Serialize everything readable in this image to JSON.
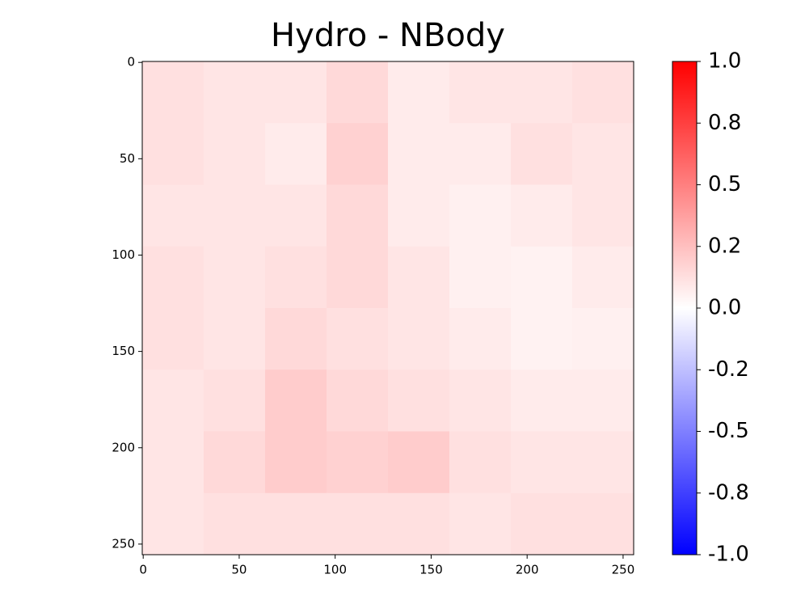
{
  "chart_data": {
    "type": "heatmap",
    "title": "Hydro - NBody",
    "values": [
      [
        0.12,
        0.1,
        0.1,
        0.15,
        0.08,
        0.1,
        0.1,
        0.12
      ],
      [
        0.12,
        0.1,
        0.08,
        0.18,
        0.08,
        0.08,
        0.12,
        0.1
      ],
      [
        0.1,
        0.1,
        0.1,
        0.15,
        0.08,
        0.06,
        0.08,
        0.1
      ],
      [
        0.12,
        0.1,
        0.12,
        0.15,
        0.1,
        0.06,
        0.05,
        0.08
      ],
      [
        0.12,
        0.1,
        0.15,
        0.12,
        0.1,
        0.08,
        0.05,
        0.06
      ],
      [
        0.1,
        0.12,
        0.2,
        0.15,
        0.12,
        0.1,
        0.08,
        0.08
      ],
      [
        0.1,
        0.15,
        0.2,
        0.18,
        0.2,
        0.12,
        0.1,
        0.1
      ],
      [
        0.1,
        0.12,
        0.12,
        0.12,
        0.12,
        0.1,
        0.12,
        0.12
      ]
    ],
    "xlim": [
      -0.5,
      255.5
    ],
    "ylim": [
      255.5,
      -0.5
    ],
    "xticks": [
      0,
      50,
      100,
      150,
      200,
      250
    ],
    "yticks": [
      0,
      50,
      100,
      150,
      200,
      250
    ],
    "clim": [
      -1,
      1
    ],
    "colormap": [
      "#0000ff",
      "#ffffff",
      "#ff0000"
    ],
    "cticks": [
      {
        "value": 1,
        "label": "1.0"
      },
      {
        "value": 0.75,
        "label": "0.8"
      },
      0.5,
      {
        "value": 0.25,
        "label": "0.2"
      },
      {
        "value": 0,
        "label": "0.0"
      },
      {
        "value": -0.25,
        "label": "-0.2"
      },
      -0.5,
      {
        "value": -0.75,
        "label": "-0.8"
      },
      {
        "value": -1,
        "label": "-1.0"
      }
    ]
  }
}
